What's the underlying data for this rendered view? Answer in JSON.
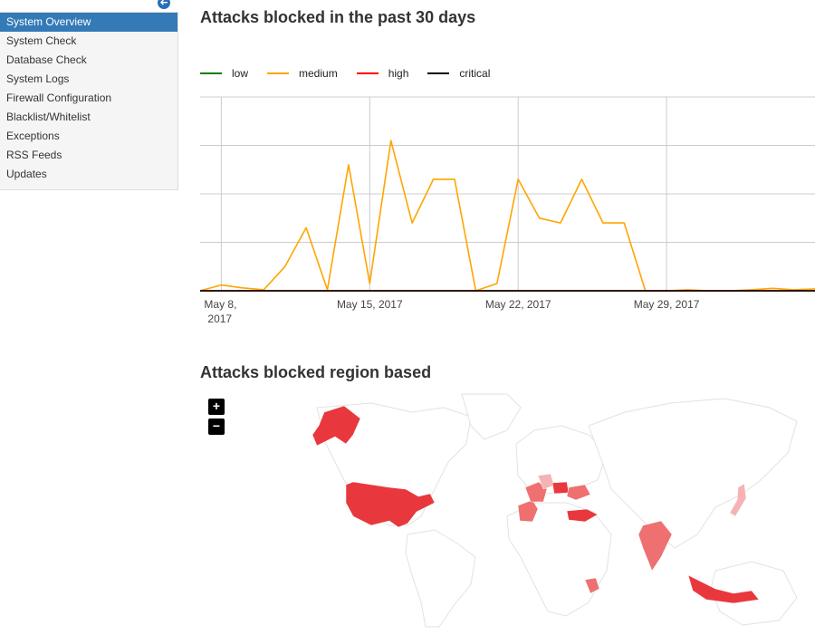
{
  "sidebar": {
    "items": [
      {
        "label": "System Overview",
        "active": true
      },
      {
        "label": "System Check",
        "active": false
      },
      {
        "label": "Database Check",
        "active": false
      },
      {
        "label": "System Logs",
        "active": false
      },
      {
        "label": "Firewall Configuration",
        "active": false
      },
      {
        "label": "Blacklist/Whitelist",
        "active": false
      },
      {
        "label": "Exceptions",
        "active": false
      },
      {
        "label": "RSS Feeds",
        "active": false
      },
      {
        "label": "Updates",
        "active": false
      }
    ],
    "back_icon": "circle-arrow-left-icon",
    "back_glyph": "➜"
  },
  "main": {
    "chart_title": "Attacks blocked in the past 30 days",
    "map_title": "Attacks blocked region based",
    "zoom_in_label": "+",
    "zoom_out_label": "−"
  },
  "chart_data": {
    "type": "line",
    "title": "Attacks blocked in the past 30 days",
    "xlabel": "",
    "ylabel": "",
    "x": [
      "2017-05-07",
      "2017-05-08",
      "2017-05-09",
      "2017-05-10",
      "2017-05-11",
      "2017-05-12",
      "2017-05-13",
      "2017-05-14",
      "2017-05-15",
      "2017-05-16",
      "2017-05-17",
      "2017-05-18",
      "2017-05-19",
      "2017-05-20",
      "2017-05-21",
      "2017-05-22",
      "2017-05-23",
      "2017-05-24",
      "2017-05-25",
      "2017-05-26",
      "2017-05-27",
      "2017-05-28",
      "2017-05-29",
      "2017-05-30",
      "2017-05-31",
      "2017-06-01",
      "2017-06-02",
      "2017-06-03",
      "2017-06-04",
      "2017-06-05"
    ],
    "x_tick_labels": [
      {
        "date": "2017-05-08",
        "label": "May 8,\n2017"
      },
      {
        "date": "2017-05-15",
        "label": "May 15, 2017"
      },
      {
        "date": "2017-05-22",
        "label": "May 22, 2017"
      },
      {
        "date": "2017-05-29",
        "label": "May 29, 2017"
      }
    ],
    "ylim": [
      0,
      4
    ],
    "y_gridlines": [
      0,
      1,
      2,
      3,
      4
    ],
    "grid": true,
    "legend_position": "top-left",
    "series": [
      {
        "name": "low",
        "color": "#008000",
        "values": [
          0,
          0,
          0,
          0,
          0,
          0,
          0,
          0,
          0,
          0,
          0,
          0,
          0,
          0,
          0,
          0,
          0,
          0,
          0,
          0,
          0,
          0,
          0,
          0,
          0,
          0,
          0,
          0,
          0,
          0
        ]
      },
      {
        "name": "medium",
        "color": "#ffa500",
        "values": [
          0,
          0.12,
          0.06,
          0.02,
          0.5,
          1.3,
          0.02,
          2.6,
          0.15,
          3.1,
          1.4,
          2.3,
          2.3,
          0,
          0.15,
          2.3,
          1.5,
          1.4,
          2.3,
          1.4,
          1.4,
          0,
          0,
          0.02,
          0,
          0,
          0.02,
          0.05,
          0.02,
          0.04
        ]
      },
      {
        "name": "high",
        "color": "#ff0000",
        "values": [
          0,
          0,
          0,
          0,
          0,
          0,
          0,
          0,
          0,
          0,
          0,
          0,
          0,
          0,
          0,
          0,
          0,
          0,
          0,
          0,
          0,
          0,
          0,
          0,
          0,
          0,
          0,
          0,
          0,
          0
        ]
      },
      {
        "name": "critical",
        "color": "#000000",
        "values": [
          0,
          0,
          0,
          0,
          0,
          0,
          0,
          0,
          0,
          0,
          0,
          0,
          0,
          0,
          0,
          0,
          0,
          0,
          0,
          0,
          0,
          0,
          0,
          0,
          0,
          0,
          0,
          0,
          0,
          0
        ]
      }
    ]
  },
  "map_data": {
    "type": "choropleth",
    "high_color": "#e8383d",
    "medium_color": "#ef7070",
    "low_color": "#f5b3b5",
    "regions": [
      {
        "name": "United States",
        "level": "high"
      },
      {
        "name": "Indonesia",
        "level": "high"
      },
      {
        "name": "Turkey",
        "level": "high"
      },
      {
        "name": "Poland",
        "level": "high"
      },
      {
        "name": "India",
        "level": "medium"
      },
      {
        "name": "Spain",
        "level": "medium"
      },
      {
        "name": "France",
        "level": "medium"
      },
      {
        "name": "Ukraine",
        "level": "medium"
      },
      {
        "name": "Kenya",
        "level": "medium"
      },
      {
        "name": "Japan",
        "level": "low"
      },
      {
        "name": "Germany",
        "level": "low"
      }
    ]
  }
}
